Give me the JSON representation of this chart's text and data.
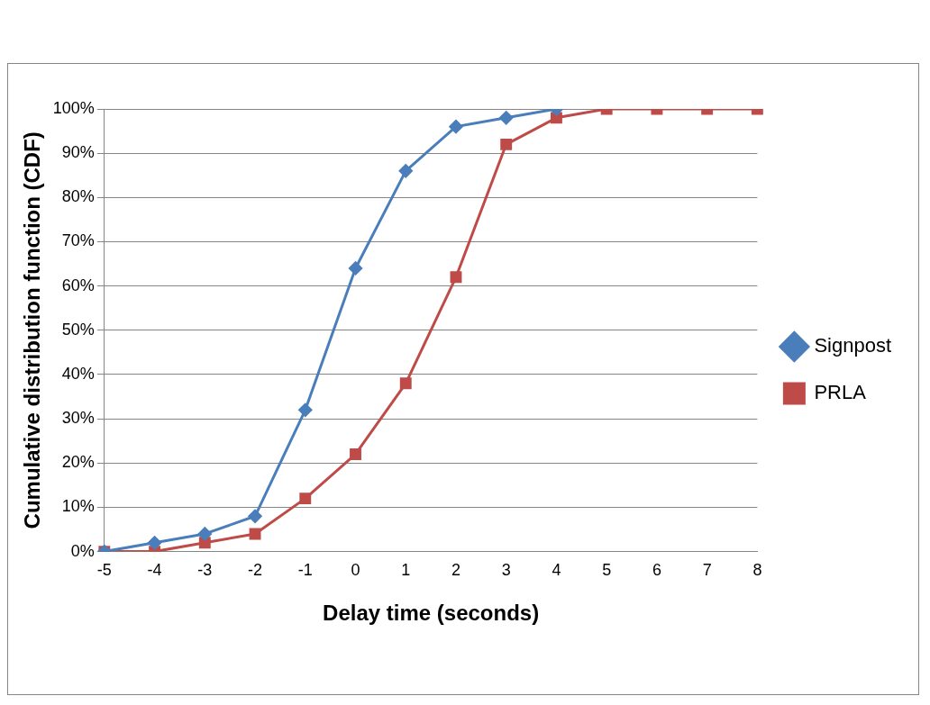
{
  "chart_data": {
    "type": "line",
    "xlabel": "Delay time (seconds)",
    "ylabel": "Cumulative distribution function (CDF)",
    "categories": [
      "-5",
      "-4",
      "-3",
      "-2",
      "-1",
      "0",
      "1",
      "2",
      "3",
      "4",
      "5",
      "6",
      "7",
      "8"
    ],
    "series": [
      {
        "name": "Signpost",
        "color": "#4a7ebb",
        "marker": "diamond",
        "values": [
          0,
          2,
          4,
          8,
          32,
          64,
          86,
          96,
          98,
          100,
          null,
          null,
          null,
          null
        ]
      },
      {
        "name": "PRLA",
        "color": "#be4b48",
        "marker": "square",
        "values": [
          0,
          0,
          2,
          4,
          12,
          22,
          38,
          62,
          92,
          98,
          100,
          100,
          100,
          100
        ]
      }
    ],
    "ylim": [
      0,
      100
    ],
    "yticks": [
      {
        "value": 0,
        "label": "0%"
      },
      {
        "value": 10,
        "label": "10%"
      },
      {
        "value": 20,
        "label": "20%"
      },
      {
        "value": 30,
        "label": "30%"
      },
      {
        "value": 40,
        "label": "40%"
      },
      {
        "value": 50,
        "label": "50%"
      },
      {
        "value": 60,
        "label": "60%"
      },
      {
        "value": 70,
        "label": "70%"
      },
      {
        "value": 80,
        "label": "80%"
      },
      {
        "value": 90,
        "label": "90%"
      },
      {
        "value": 100,
        "label": "100%"
      }
    ],
    "grid": "y",
    "legend": "right",
    "line_style": "solid"
  }
}
